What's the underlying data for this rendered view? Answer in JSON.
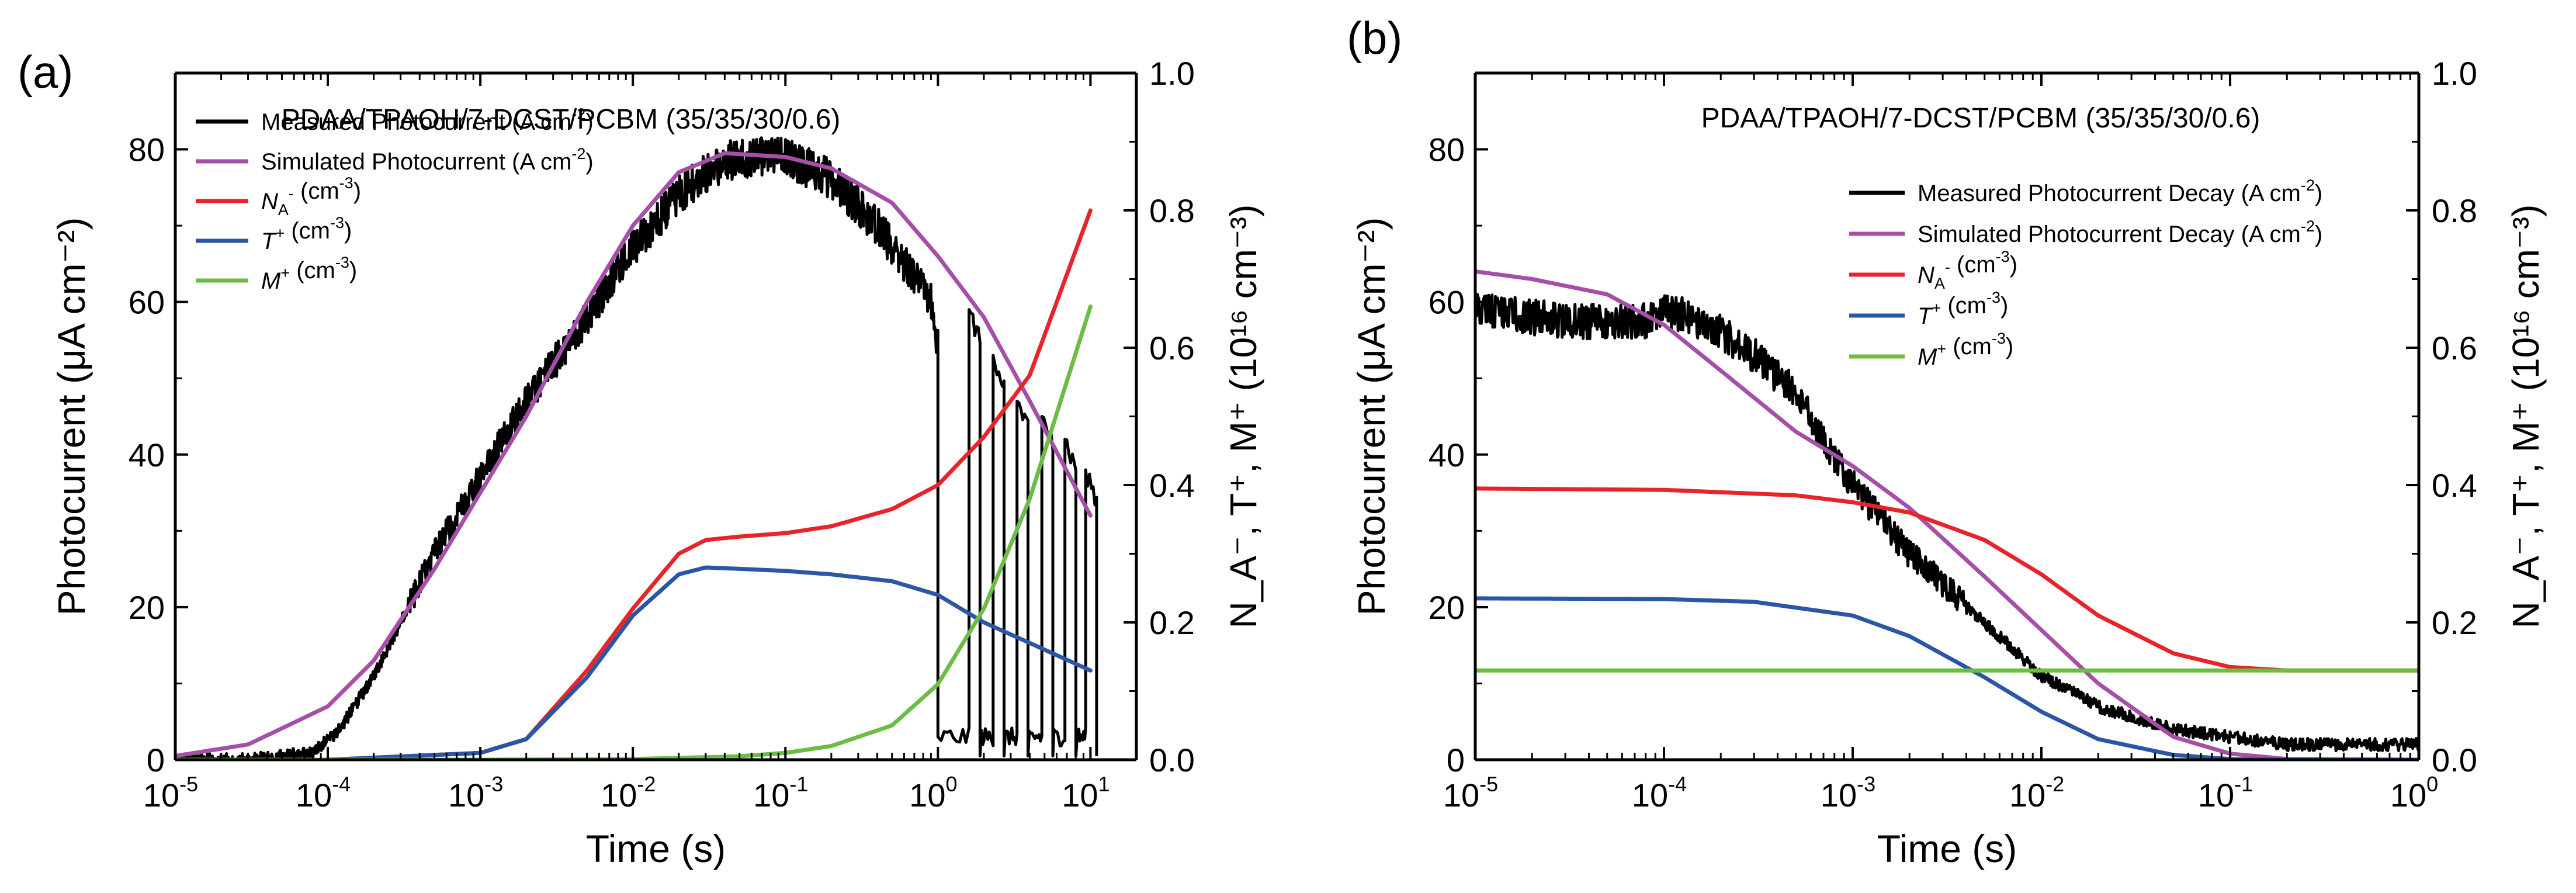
{
  "chart_data": [
    {
      "panel_label": "(a)",
      "type": "line",
      "annotation": "PDAA/TPAOH/7-DCST/PCBM (35/35/30/0.6)",
      "xscale": "log",
      "xlim": [
        1e-05,
        20
      ],
      "xticks": [
        {
          "value": 1e-05,
          "base": "10",
          "exp": "-5"
        },
        {
          "value": 0.0001,
          "base": "10",
          "exp": "-4"
        },
        {
          "value": 0.001,
          "base": "10",
          "exp": "-3"
        },
        {
          "value": 0.01,
          "base": "10",
          "exp": "-2"
        },
        {
          "value": 0.1,
          "base": "10",
          "exp": "-1"
        },
        {
          "value": 1,
          "base": "10",
          "exp": "0"
        },
        {
          "value": 10,
          "base": "10",
          "exp": "1"
        }
      ],
      "xlabel": "Time (s)",
      "ylabel": "Photocurrent (μA cm⁻²)",
      "ylim": [
        0,
        90
      ],
      "yticks": [
        0,
        20,
        40,
        60,
        80
      ],
      "y2label": "N_A⁻, T⁺, M⁺ (10¹⁶ cm⁻³)",
      "y2lim": [
        0,
        1.0
      ],
      "y2ticks": [
        "0.0",
        "0.2",
        "0.4",
        "0.6",
        "0.8",
        "1.0"
      ],
      "legend_position": "top-left",
      "legend": [
        {
          "id": "measured",
          "pre": "",
          "main": "Measured Photocurrent (A cm",
          "sup": "-2",
          "post": ")",
          "color": "#000000"
        },
        {
          "id": "simulated",
          "pre": "",
          "main": "Simulated Photocurrent (A cm",
          "sup": "-2",
          "post": ")",
          "color": "#a54fa8"
        },
        {
          "id": "na",
          "pre": "N",
          "sub": "A",
          "supLead": "-",
          "main": " (cm",
          "sup": "-3",
          "post": ")",
          "color": "#e8242b",
          "italic": true
        },
        {
          "id": "t",
          "pre": "T",
          "supLead": "+",
          "main": " (cm",
          "sup": "-3",
          "post": ")",
          "color": "#2a56a5",
          "italic": true
        },
        {
          "id": "m",
          "pre": "M",
          "supLead": "+",
          "main": " (cm",
          "sup": "-3",
          "post": ")",
          "color": "#6cbd45",
          "italic": true
        }
      ],
      "series": [
        {
          "name": "Measured Photocurrent",
          "axis": "left",
          "color": "#000000",
          "style": "noisy",
          "x": [
            1e-05,
            3e-05,
            5e-05,
            8e-05,
            0.00012,
            0.0002,
            0.0003,
            0.0005,
            0.001,
            0.002,
            0.005,
            0.01,
            0.02,
            0.03,
            0.05,
            0.1,
            0.2,
            0.4,
            0.6,
            0.9,
            0.98
          ],
          "y": [
            0,
            0,
            0.5,
            1,
            4,
            11,
            18,
            27,
            37,
            47,
            58,
            67,
            74,
            77,
            79,
            79,
            76,
            70,
            65,
            60,
            55
          ],
          "tail": {
            "drop_x": 1.0,
            "floor": 3,
            "spikes": [
              {
                "x": 1.6,
                "y": 59
              },
              {
                "x": 2.3,
                "y": 53
              },
              {
                "x": 3.3,
                "y": 47
              },
              {
                "x": 4.8,
                "y": 45
              },
              {
                "x": 6.8,
                "y": 42
              },
              {
                "x": 9.3,
                "y": 38
              }
            ]
          }
        },
        {
          "name": "Simulated Photocurrent",
          "axis": "left",
          "color": "#a54fa8",
          "x": [
            1e-05,
            3e-05,
            0.0001,
            0.0002,
            0.0005,
            0.001,
            0.002,
            0.005,
            0.01,
            0.02,
            0.04,
            0.1,
            0.2,
            0.5,
            1,
            2,
            4,
            10
          ],
          "y": [
            0.5,
            2,
            7,
            13,
            25,
            35,
            45,
            60,
            70,
            77,
            79.5,
            79,
            77.5,
            73,
            66,
            58,
            47,
            32
          ]
        },
        {
          "name": "N_A-",
          "axis": "right",
          "color": "#e8242b",
          "x": [
            1e-05,
            0.0001,
            0.001,
            0.002,
            0.005,
            0.01,
            0.02,
            0.03,
            0.05,
            0.1,
            0.2,
            0.5,
            1,
            2,
            4,
            10
          ],
          "y": [
            0,
            0,
            0.01,
            0.03,
            0.13,
            0.22,
            0.3,
            0.32,
            0.325,
            0.33,
            0.34,
            0.365,
            0.4,
            0.47,
            0.56,
            0.8
          ]
        },
        {
          "name": "T+",
          "axis": "right",
          "color": "#2a56a5",
          "x": [
            1e-05,
            0.0001,
            0.001,
            0.002,
            0.005,
            0.01,
            0.02,
            0.03,
            0.05,
            0.1,
            0.2,
            0.5,
            1,
            2,
            4,
            10
          ],
          "y": [
            0,
            0,
            0.01,
            0.03,
            0.12,
            0.21,
            0.27,
            0.28,
            0.278,
            0.275,
            0.27,
            0.26,
            0.24,
            0.2,
            0.17,
            0.13
          ]
        },
        {
          "name": "M+",
          "axis": "right",
          "color": "#6cbd45",
          "x": [
            1e-05,
            0.001,
            0.01,
            0.05,
            0.1,
            0.2,
            0.5,
            1,
            2,
            4,
            10
          ],
          "y": [
            0,
            0,
            0.001,
            0.005,
            0.01,
            0.02,
            0.05,
            0.11,
            0.22,
            0.38,
            0.66
          ]
        }
      ]
    },
    {
      "panel_label": "(b)",
      "type": "line",
      "annotation": "PDAA/TPAOH/7-DCST/PCBM (35/35/30/0.6)",
      "xscale": "log",
      "xlim": [
        1e-05,
        1
      ],
      "xticks": [
        {
          "value": 1e-05,
          "base": "10",
          "exp": "-5"
        },
        {
          "value": 0.0001,
          "base": "10",
          "exp": "-4"
        },
        {
          "value": 0.001,
          "base": "10",
          "exp": "-3"
        },
        {
          "value": 0.01,
          "base": "10",
          "exp": "-2"
        },
        {
          "value": 0.1,
          "base": "10",
          "exp": "-1"
        },
        {
          "value": 1,
          "base": "10",
          "exp": "0"
        }
      ],
      "xlabel": "Time (s)",
      "ylabel": "Photocurrent (μA cm⁻²)",
      "ylim": [
        0,
        90
      ],
      "yticks": [
        0,
        20,
        40,
        60,
        80
      ],
      "y2label": "N_A⁻, T⁺, M⁺ (10¹⁶ cm⁻³)",
      "y2lim": [
        0,
        1.0
      ],
      "y2ticks": [
        "0.0",
        "0.2",
        "0.4",
        "0.6",
        "0.8",
        "1.0"
      ],
      "legend_position": "top-right",
      "legend": [
        {
          "id": "measured",
          "pre": "",
          "main": "Measured Photocurrent Decay (A cm",
          "sup": "-2",
          "post": ")",
          "color": "#000000"
        },
        {
          "id": "simulated",
          "pre": "",
          "main": "Simulated Photocurrent Decay (A cm",
          "sup": "-2",
          "post": ")",
          "color": "#a54fa8"
        },
        {
          "id": "na",
          "pre": "N",
          "sub": "A",
          "supLead": "-",
          "main": " (cm",
          "sup": "-3",
          "post": ")",
          "color": "#e8242b",
          "italic": true
        },
        {
          "id": "t",
          "pre": "T",
          "supLead": "+",
          "main": " (cm",
          "sup": "-3",
          "post": ")",
          "color": "#2a56a5",
          "italic": true
        },
        {
          "id": "m",
          "pre": "M",
          "supLead": "+",
          "main": " (cm",
          "sup": "-3",
          "post": ")",
          "color": "#6cbd45",
          "italic": true
        }
      ],
      "series": [
        {
          "name": "Measured Photocurrent Decay",
          "axis": "left",
          "color": "#000000",
          "style": "noisy",
          "x": [
            1e-05,
            2e-05,
            3e-05,
            5e-05,
            8e-05,
            0.0001,
            0.00012,
            0.0002,
            0.0003,
            0.0005,
            0.0007,
            0.001,
            0.002,
            0.005,
            0.01,
            0.02,
            0.05,
            0.1,
            0.2,
            0.5,
            1
          ],
          "y": [
            59.5,
            58,
            57.5,
            57.5,
            57.5,
            58.5,
            58.5,
            56,
            53,
            48,
            42,
            36,
            27,
            18,
            11,
            7,
            4,
            3,
            2,
            2,
            2
          ]
        },
        {
          "name": "Simulated Photocurrent Decay",
          "axis": "left",
          "color": "#a54fa8",
          "x": [
            1e-05,
            2e-05,
            5e-05,
            0.0001,
            0.0002,
            0.0005,
            0.001,
            0.002,
            0.005,
            0.01,
            0.02,
            0.05,
            0.1,
            0.2,
            1
          ],
          "y": [
            64,
            63,
            61,
            57,
            51,
            43,
            38.5,
            33,
            24,
            17,
            10,
            3,
            0.8,
            0.1,
            0
          ]
        },
        {
          "name": "N_A-",
          "axis": "right",
          "color": "#e8242b",
          "x": [
            1e-05,
            0.0001,
            0.0005,
            0.001,
            0.002,
            0.005,
            0.01,
            0.02,
            0.05,
            0.1,
            0.2,
            0.5,
            1
          ],
          "y": [
            0.395,
            0.393,
            0.385,
            0.375,
            0.36,
            0.32,
            0.27,
            0.21,
            0.155,
            0.135,
            0.13,
            0.13,
            0.13
          ]
        },
        {
          "name": "T+",
          "axis": "right",
          "color": "#2a56a5",
          "x": [
            1e-05,
            0.0001,
            0.0003,
            0.001,
            0.002,
            0.005,
            0.01,
            0.02,
            0.05,
            0.1,
            0.2,
            1
          ],
          "y": [
            0.235,
            0.234,
            0.23,
            0.21,
            0.18,
            0.12,
            0.07,
            0.03,
            0.007,
            0.001,
            0,
            0
          ]
        },
        {
          "name": "M+",
          "axis": "right",
          "color": "#6cbd45",
          "x": [
            1e-05,
            1
          ],
          "y": [
            0.13,
            0.13
          ]
        }
      ]
    }
  ]
}
